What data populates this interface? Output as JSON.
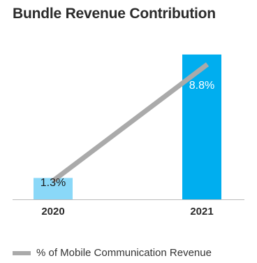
{
  "chart_data": {
    "type": "bar",
    "title": "Bundle Revenue Contribution",
    "categories": [
      "2020",
      "2021"
    ],
    "values": [
      1.3,
      8.8
    ],
    "data_labels": [
      "1.3%",
      "8.8%"
    ],
    "ylim": [
      0,
      10.2
    ],
    "grid": false,
    "bar_colors": [
      "#8ad8f8",
      "#00aeef"
    ],
    "trend_line": {
      "name": "% of Mobile Communication Revenue",
      "color": "#aaaaaa"
    },
    "legend_position": "bottom-left",
    "axis_color": "#bbbbbb"
  }
}
